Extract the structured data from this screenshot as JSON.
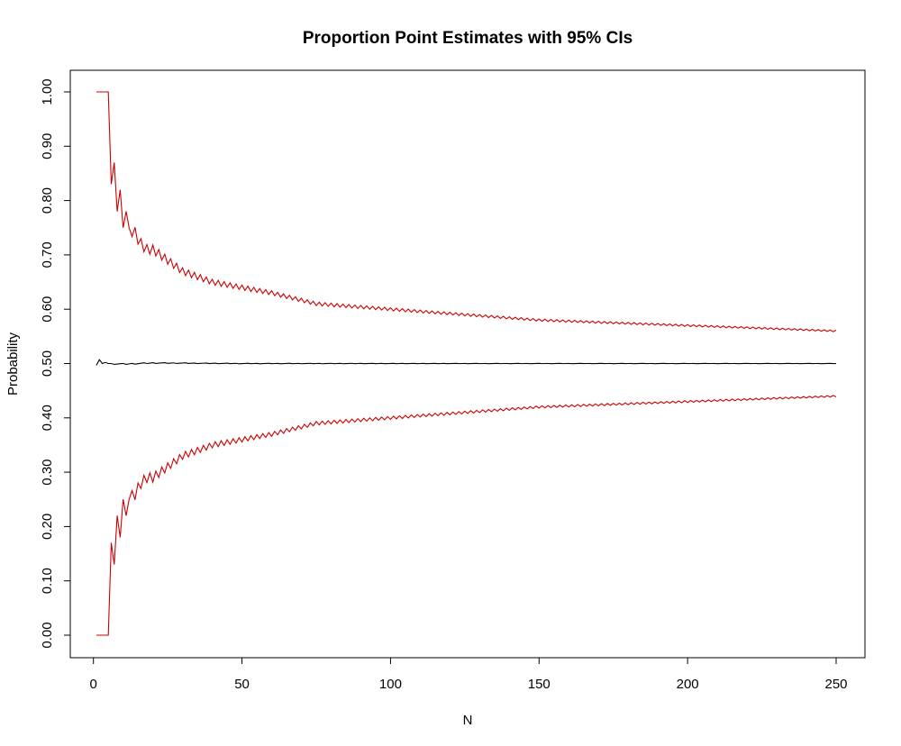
{
  "chart_data": {
    "type": "line",
    "title": "Proportion Point Estimates with 95% CIs",
    "xlabel": "N",
    "ylabel": "Probability",
    "xlim": [
      1,
      250
    ],
    "ylim": [
      0,
      1
    ],
    "x_ticks": [
      0,
      50,
      100,
      150,
      200,
      250
    ],
    "y_ticks": [
      "0.00",
      "0.10",
      "0.20",
      "0.30",
      "0.40",
      "0.50",
      "0.60",
      "0.70",
      "0.80",
      "0.90",
      "1.00"
    ],
    "grid": false,
    "legend": "none",
    "series": [
      {
        "role": "upper",
        "color": "#cc0000",
        "x": [
          1,
          2,
          3,
          4,
          5,
          6,
          7,
          8,
          9,
          10,
          11,
          12,
          14,
          16,
          18,
          20,
          25,
          30,
          40,
          50,
          60,
          75,
          100,
          125,
          150,
          175,
          200,
          225,
          250
        ],
        "values": [
          1.0,
          1.0,
          1.0,
          1.0,
          1.0,
          0.83,
          0.87,
          0.78,
          0.82,
          0.75,
          0.78,
          0.75,
          0.74,
          0.72,
          0.71,
          0.71,
          0.69,
          0.67,
          0.65,
          0.64,
          0.63,
          0.61,
          0.6,
          0.59,
          0.58,
          0.575,
          0.57,
          0.565,
          0.56
        ]
      },
      {
        "role": "estimate",
        "color": "#000000",
        "x": [
          1,
          2,
          3,
          4,
          5,
          6,
          10,
          20,
          50,
          100,
          150,
          200,
          250
        ],
        "values": [
          0.497,
          0.507,
          0.5,
          0.502,
          0.5,
          0.5,
          0.499,
          0.501,
          0.5,
          0.5,
          0.5,
          0.5,
          0.5
        ]
      },
      {
        "role": "lower",
        "color": "#cc0000",
        "x": [
          1,
          2,
          3,
          4,
          5,
          6,
          7,
          8,
          9,
          10,
          11,
          12,
          14,
          16,
          18,
          20,
          25,
          30,
          40,
          50,
          60,
          75,
          100,
          125,
          150,
          175,
          200,
          225,
          250
        ],
        "values": [
          0.0,
          0.0,
          0.0,
          0.0,
          0.0,
          0.17,
          0.13,
          0.22,
          0.18,
          0.25,
          0.22,
          0.25,
          0.26,
          0.28,
          0.29,
          0.29,
          0.31,
          0.33,
          0.35,
          0.36,
          0.37,
          0.39,
          0.4,
          0.41,
          0.42,
          0.425,
          0.43,
          0.435,
          0.44
        ]
      }
    ]
  }
}
